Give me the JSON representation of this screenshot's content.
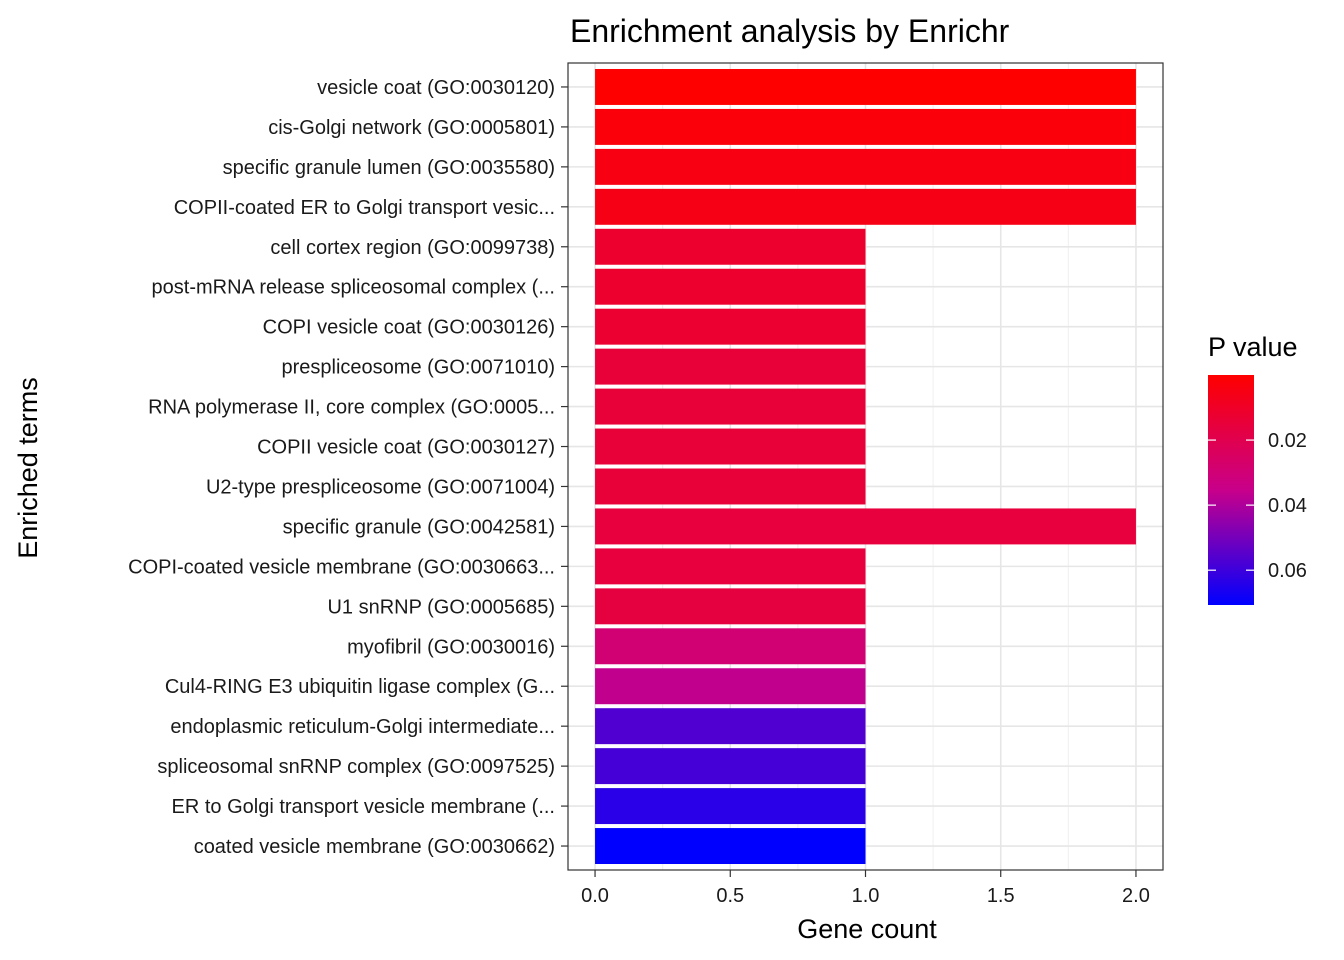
{
  "chart_data": {
    "type": "bar",
    "orientation": "horizontal",
    "title": "Enrichment analysis by Enrichr",
    "xlabel": "Gene count",
    "ylabel": "Enriched terms",
    "xlim": [
      -0.1,
      2.1
    ],
    "x_ticks": [
      0.0,
      0.5,
      1.0,
      1.5,
      2.0
    ],
    "x_tick_labels": [
      "0.0",
      "0.5",
      "1.0",
      "1.5",
      "2.0"
    ],
    "categories": [
      "vesicle coat (GO:0030120)",
      "cis-Golgi network (GO:0005801)",
      "specific granule lumen (GO:0035580)",
      "COPII-coated ER to Golgi transport vesic...",
      "cell cortex region (GO:0099738)",
      "post-mRNA release spliceosomal complex (...",
      "COPI vesicle coat (GO:0030126)",
      "prespliceosome (GO:0071010)",
      "RNA polymerase II, core complex (GO:0005...",
      "COPII vesicle coat (GO:0030127)",
      "U2-type prespliceosome (GO:0071004)",
      "specific granule (GO:0042581)",
      "COPI-coated vesicle membrane (GO:0030663...",
      "U1 snRNP (GO:0005685)",
      "myofibril (GO:0030016)",
      "Cul4-RING E3 ubiquitin ligase complex (G...",
      "endoplasmic reticulum-Golgi intermediate...",
      "spliceosomal snRNP complex (GO:0097525)",
      "ER to Golgi transport vesicle membrane (...",
      "coated vesicle membrane (GO:0030662)"
    ],
    "values": [
      2,
      2,
      2,
      2,
      1,
      1,
      1,
      1,
      1,
      1,
      1,
      2,
      1,
      1,
      1,
      1,
      1,
      1,
      1,
      1
    ],
    "p_values": [
      0.0,
      0.0025,
      0.0045,
      0.0055,
      0.0115,
      0.0115,
      0.0125,
      0.0145,
      0.0145,
      0.0145,
      0.0145,
      0.0155,
      0.0155,
      0.0165,
      0.0295,
      0.0365,
      0.0565,
      0.0585,
      0.0635,
      0.0707
    ],
    "legend": {
      "title": "P value",
      "position": "right",
      "range": [
        0.0,
        0.0707
      ],
      "ticks": [
        0.02,
        0.04,
        0.06
      ],
      "tick_labels": [
        "0.02",
        "0.04",
        "0.06"
      ],
      "color_low": "#ff0000",
      "color_high": "#0000ff"
    },
    "grid": true
  }
}
